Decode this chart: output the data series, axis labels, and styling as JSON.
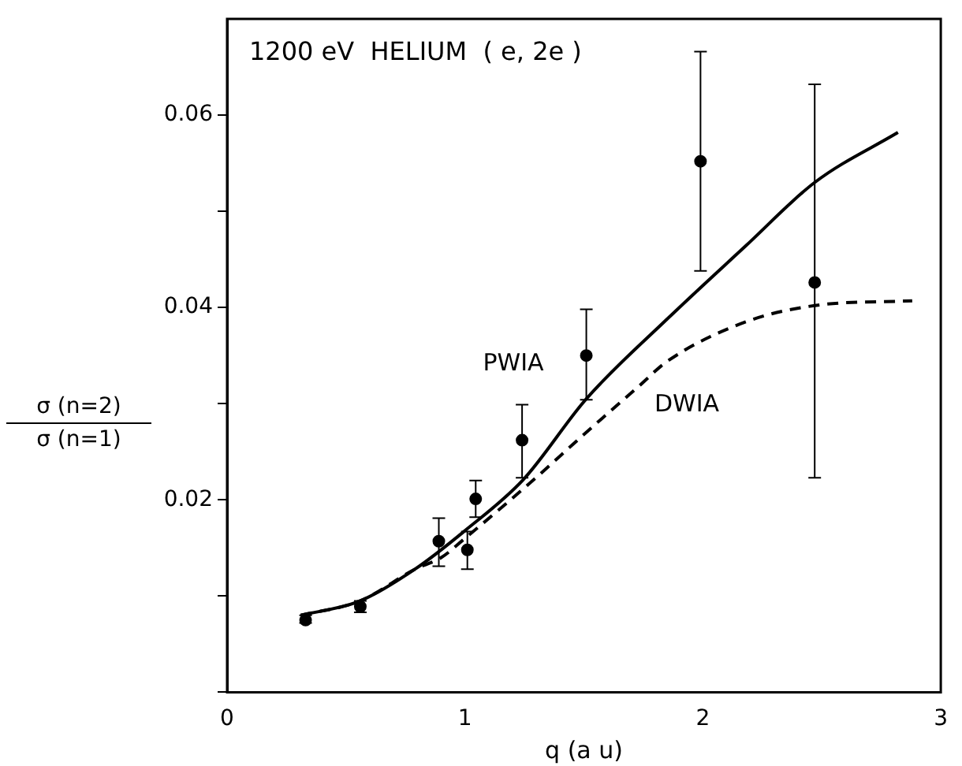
{
  "chart_data": {
    "type": "scatter",
    "title": "1200 eV  HELIUM  ( e, 2e )",
    "xlabel": "q (a u)",
    "ylabel": "σ (n=2)\nσ (n=1)",
    "xlim": [
      0,
      3
    ],
    "xticks": [
      0,
      1,
      2,
      3
    ],
    "ylim": [
      0,
      0.07
    ],
    "yticks": [
      {
        "value": 0,
        "label": null
      },
      {
        "value": 0.01,
        "label": null
      },
      0.02,
      {
        "value": 0.03,
        "label": null
      },
      0.04,
      {
        "value": 0.05,
        "label": null
      },
      0.06
    ],
    "grid": false,
    "legend": false,
    "marker": "circle",
    "series": [
      {
        "color": "#000000",
        "x": [
          0.33,
          0.56,
          0.89,
          1.01,
          1.045,
          1.24,
          1.51,
          1.99,
          2.47
        ],
        "values": [
          0.0075,
          0.0089,
          0.0157,
          0.0148,
          0.0201,
          0.0262,
          0.035,
          0.0552,
          0.0426
        ],
        "errors": [
          [
            0.0072,
            0.008
          ],
          [
            0.0083,
            0.0095
          ],
          [
            0.0131,
            0.0181
          ],
          [
            0.0128,
            0.0167
          ],
          [
            0.0182,
            0.022
          ],
          [
            0.0223,
            0.0299
          ],
          [
            0.0304,
            0.0398
          ],
          [
            0.0438,
            0.0666
          ],
          [
            0.0223,
            0.0632
          ]
        ]
      },
      {
        "type": "line",
        "name": "PWIA",
        "color": "#000000",
        "line_style": "solid",
        "marker": "none",
        "x": [
          0.31,
          0.56,
          0.79,
          1.0,
          1.245,
          1.51,
          1.85,
          2.18,
          2.47,
          2.82
        ],
        "values": [
          0.008,
          0.0095,
          0.0128,
          0.0168,
          0.0221,
          0.0305,
          0.0388,
          0.0464,
          0.053,
          0.0582
        ]
      },
      {
        "type": "line",
        "name": "DWIA",
        "color": "#000000",
        "line_style": "dashed",
        "marker": "none",
        "x": [
          0.31,
          0.56,
          0.79,
          0.9,
          1.0,
          1.28,
          1.5,
          1.73,
          1.85,
          2.18,
          2.47,
          2.88
        ],
        "values": [
          0.008,
          0.0095,
          0.0128,
          0.014,
          0.016,
          0.0219,
          0.0268,
          0.0318,
          0.0344,
          0.0385,
          0.0402,
          0.0407
        ]
      }
    ]
  }
}
